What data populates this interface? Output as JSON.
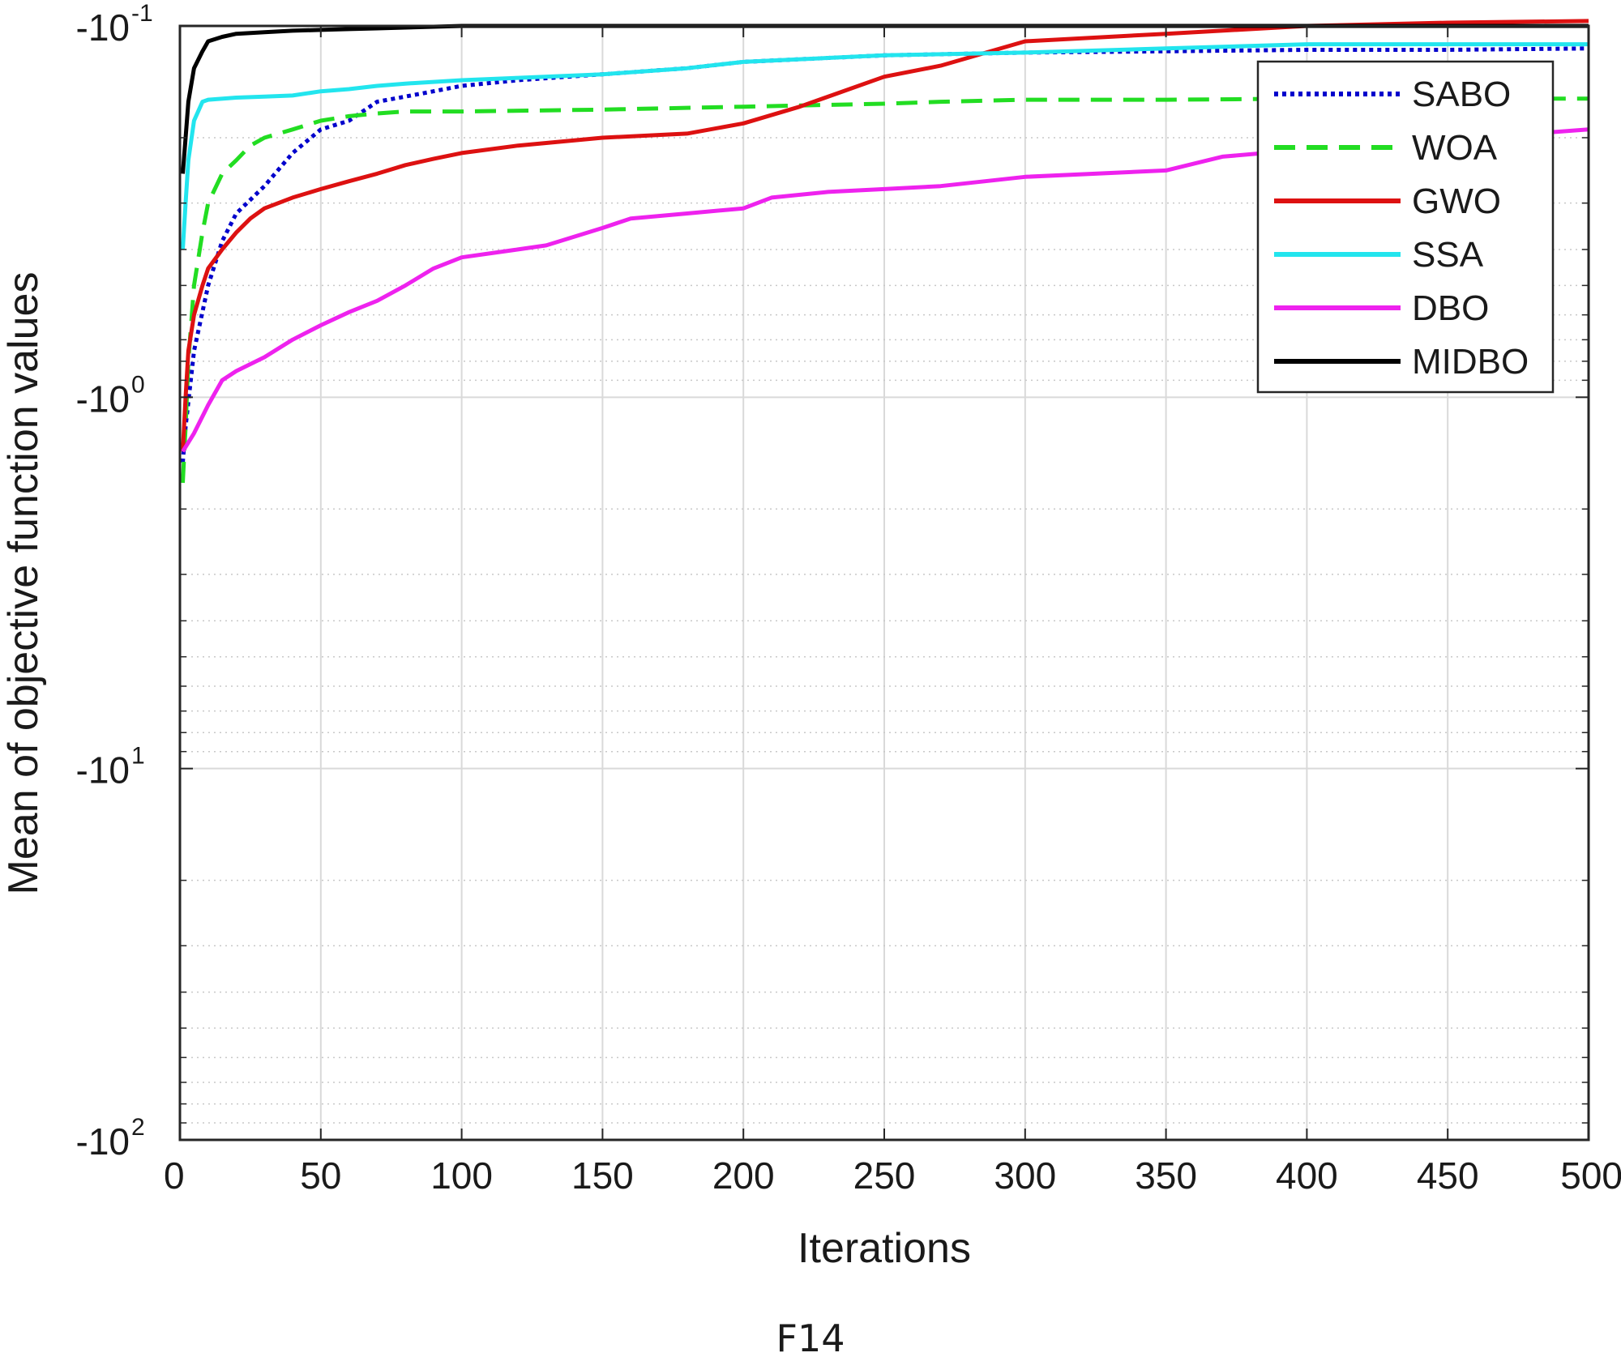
{
  "chart_data": {
    "type": "line",
    "title": "",
    "caption": "F14",
    "xlabel": "Iterations",
    "ylabel": "Mean of objective function values",
    "xlim": [
      0,
      500
    ],
    "x_ticks": [
      0,
      50,
      100,
      150,
      200,
      250,
      300,
      350,
      400,
      450,
      500
    ],
    "y_scale": "log",
    "y_magnitude_range": [
      0.1,
      100
    ],
    "y_ticks": [
      {
        "base": "-10",
        "exp": "-1",
        "magnitude": 0.1
      },
      {
        "base": "-10",
        "exp": "0",
        "magnitude": 1
      },
      {
        "base": "-10",
        "exp": "1",
        "magnitude": 10
      },
      {
        "base": "-10",
        "exp": "2",
        "magnitude": 100
      }
    ],
    "grid": true,
    "legend_position": "top-right",
    "series": [
      {
        "name": "SABO",
        "color": "#0000cc",
        "dash": "dotted",
        "x": [
          1,
          2,
          5,
          10,
          15,
          20,
          30,
          40,
          50,
          60,
          70,
          80,
          90,
          100,
          120,
          150,
          180,
          200,
          250,
          300,
          350,
          400,
          450,
          500
        ],
        "magnitude": [
          1.5,
          1.2,
          0.75,
          0.5,
          0.38,
          0.32,
          0.27,
          0.22,
          0.19,
          0.18,
          0.16,
          0.155,
          0.15,
          0.145,
          0.14,
          0.135,
          0.13,
          0.125,
          0.12,
          0.118,
          0.117,
          0.116,
          0.116,
          0.115
        ]
      },
      {
        "name": "WOA",
        "color": "#22dd22",
        "dash": "dashed",
        "x": [
          1,
          2,
          3,
          5,
          8,
          10,
          15,
          20,
          25,
          30,
          40,
          50,
          60,
          70,
          80,
          100,
          150,
          200,
          250,
          270,
          300,
          350,
          400,
          450,
          500
        ],
        "magnitude": [
          1.7,
          1.2,
          0.8,
          0.5,
          0.36,
          0.3,
          0.25,
          0.23,
          0.21,
          0.2,
          0.19,
          0.18,
          0.175,
          0.172,
          0.17,
          0.17,
          0.168,
          0.165,
          0.162,
          0.16,
          0.158,
          0.158,
          0.157,
          0.157,
          0.157
        ]
      },
      {
        "name": "GWO",
        "color": "#dd1111",
        "dash": "solid",
        "x": [
          1,
          2,
          3,
          5,
          8,
          10,
          15,
          20,
          25,
          30,
          40,
          50,
          60,
          70,
          80,
          90,
          100,
          120,
          150,
          180,
          200,
          220,
          250,
          270,
          300,
          350,
          400,
          450,
          500
        ],
        "magnitude": [
          1.4,
          1.0,
          0.75,
          0.6,
          0.5,
          0.45,
          0.4,
          0.36,
          0.33,
          0.31,
          0.29,
          0.275,
          0.262,
          0.25,
          0.237,
          0.228,
          0.22,
          0.21,
          0.2,
          0.195,
          0.183,
          0.165,
          0.137,
          0.128,
          0.11,
          0.105,
          0.1,
          0.098,
          0.097
        ]
      },
      {
        "name": "SSA",
        "color": "#22e5ee",
        "dash": "solid",
        "x": [
          1,
          2,
          3,
          5,
          8,
          10,
          20,
          30,
          40,
          50,
          60,
          70,
          80,
          100,
          120,
          150,
          180,
          200,
          250,
          300,
          350,
          400,
          450,
          500
        ],
        "magnitude": [
          0.4,
          0.3,
          0.23,
          0.18,
          0.16,
          0.158,
          0.156,
          0.155,
          0.154,
          0.15,
          0.148,
          0.145,
          0.143,
          0.14,
          0.138,
          0.135,
          0.13,
          0.125,
          0.12,
          0.118,
          0.115,
          0.112,
          0.112,
          0.112
        ]
      },
      {
        "name": "DBO",
        "color": "#ee22ee",
        "dash": "solid",
        "x": [
          1,
          5,
          10,
          15,
          20,
          30,
          40,
          50,
          60,
          70,
          80,
          90,
          100,
          120,
          130,
          150,
          160,
          180,
          200,
          210,
          230,
          250,
          270,
          300,
          350,
          370,
          400,
          450,
          480,
          500
        ],
        "magnitude": [
          1.4,
          1.25,
          1.05,
          0.9,
          0.85,
          0.78,
          0.7,
          0.64,
          0.59,
          0.55,
          0.5,
          0.45,
          0.42,
          0.4,
          0.39,
          0.35,
          0.33,
          0.32,
          0.31,
          0.29,
          0.28,
          0.275,
          0.27,
          0.255,
          0.245,
          0.225,
          0.215,
          0.2,
          0.195,
          0.19
        ]
      },
      {
        "name": "MIDBO",
        "color": "#000000",
        "dash": "solid",
        "x": [
          1,
          2,
          3,
          5,
          8,
          10,
          15,
          20,
          30,
          40,
          50,
          60,
          70,
          80,
          90,
          100,
          120,
          150,
          200,
          250,
          300,
          350,
          400,
          450,
          500
        ],
        "magnitude": [
          0.25,
          0.2,
          0.16,
          0.13,
          0.117,
          0.11,
          0.107,
          0.105,
          0.104,
          0.103,
          0.1025,
          0.102,
          0.1015,
          0.101,
          0.1005,
          0.1,
          0.1,
          0.1,
          0.1,
          0.1,
          0.1,
          0.1,
          0.1,
          0.1,
          0.1
        ]
      }
    ]
  }
}
